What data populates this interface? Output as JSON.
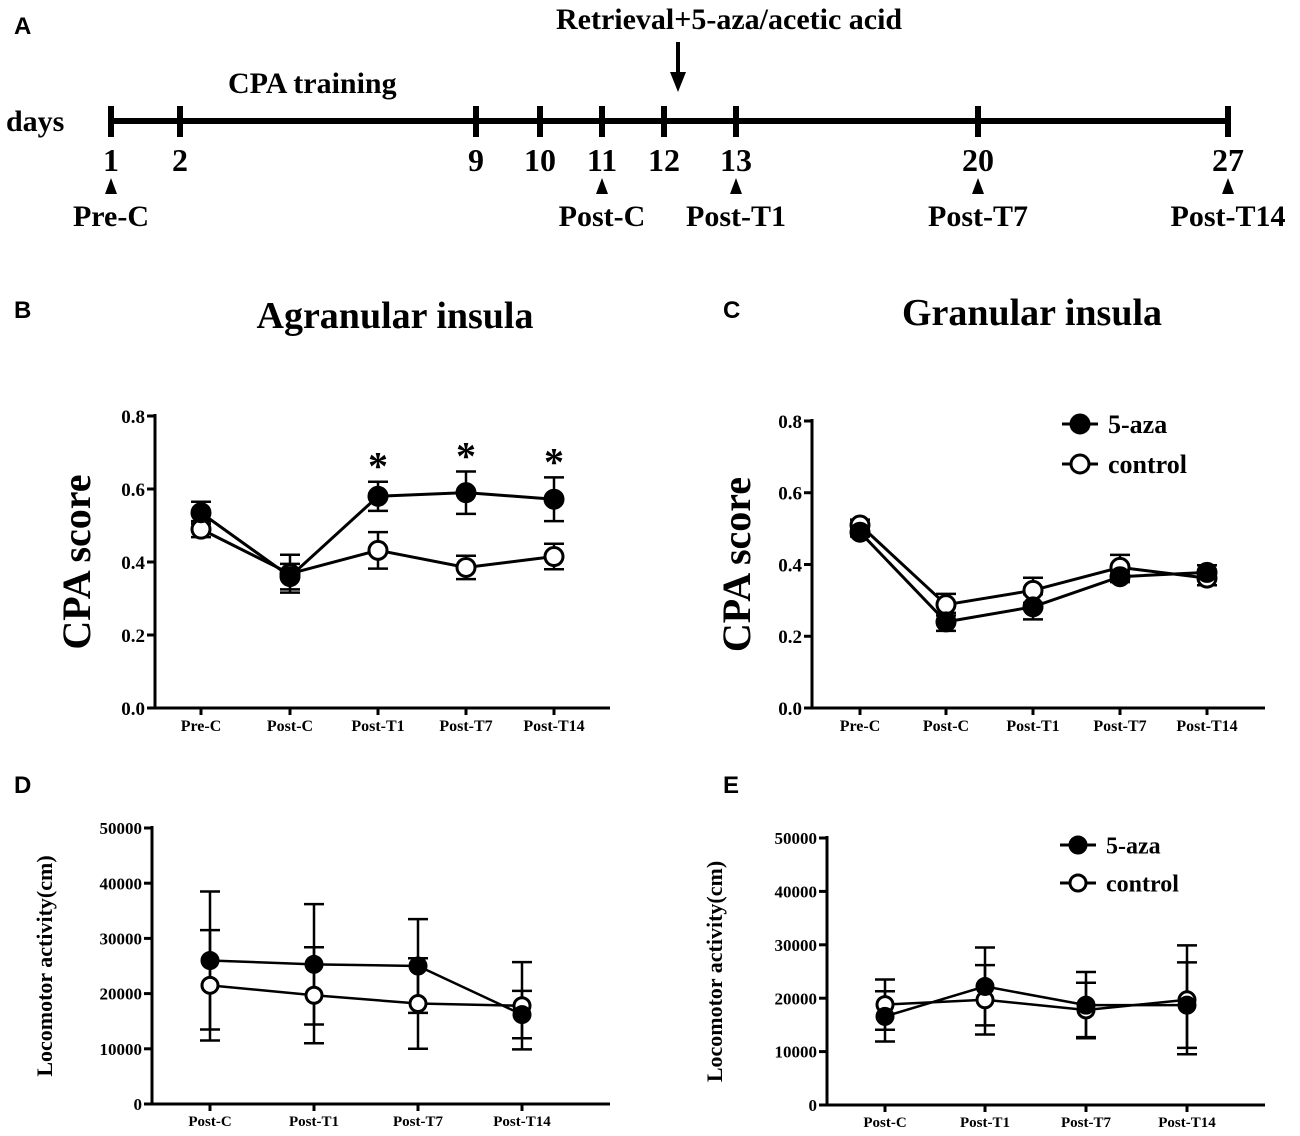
{
  "panel_labels": [
    "A",
    "B",
    "C",
    "D",
    "E"
  ],
  "timeline": {
    "axis_label": "days",
    "training_label": "CPA training",
    "retrieval_label": "Retrieval+5-aza/acetic acid",
    "ticks": [
      1,
      2,
      9,
      10,
      11,
      12,
      13,
      20,
      27
    ],
    "tests": [
      {
        "day": 1,
        "label": "Pre-C"
      },
      {
        "day": 11,
        "label": "Post-C"
      },
      {
        "day": 13,
        "label": "Post-T1"
      },
      {
        "day": 20,
        "label": "Post-T7"
      },
      {
        "day": 27,
        "label": "Post-T14"
      }
    ]
  },
  "legend": {
    "series_a": "5-aza",
    "series_b": "control"
  },
  "chart_data": [
    {
      "id": "B",
      "type": "line",
      "title": "Agranular insula",
      "xlabel": "",
      "ylabel": "CPA score",
      "categories": [
        "Pre-C",
        "Post-C",
        "Post-T1",
        "Post-T7",
        "Post-T14"
      ],
      "ylim": [
        0,
        0.8
      ],
      "yticks": [
        "0.0",
        "0.2",
        "0.4",
        "0.6",
        "0.8"
      ],
      "series": [
        {
          "name": "5-aza",
          "marker": "filled",
          "values": [
            0.535,
            0.36,
            0.58,
            0.59,
            0.572
          ],
          "sem": [
            0.03,
            0.035,
            0.04,
            0.058,
            0.06
          ]
        },
        {
          "name": "control",
          "marker": "open",
          "values": [
            0.49,
            0.368,
            0.432,
            0.385,
            0.415
          ],
          "sem": [
            0.022,
            0.052,
            0.05,
            0.032,
            0.035
          ]
        }
      ],
      "annotations": [
        {
          "category": "Post-T1",
          "text": "*"
        },
        {
          "category": "Post-T7",
          "text": "*"
        },
        {
          "category": "Post-T14",
          "text": "*"
        }
      ],
      "legend": false
    },
    {
      "id": "C",
      "type": "line",
      "title": "Granular insula",
      "xlabel": "",
      "ylabel": "CPA score",
      "categories": [
        "Pre-C",
        "Post-C",
        "Post-T1",
        "Post-T7",
        "Post-T14"
      ],
      "ylim": [
        0,
        0.8
      ],
      "yticks": [
        "0.0",
        "0.2",
        "0.4",
        "0.6",
        "0.8"
      ],
      "series": [
        {
          "name": "5-aza",
          "marker": "filled",
          "values": [
            0.49,
            0.24,
            0.282,
            0.366,
            0.378
          ],
          "sem": [
            0.012,
            0.025,
            0.035,
            0.015,
            0.02
          ]
        },
        {
          "name": "control",
          "marker": "open",
          "values": [
            0.51,
            0.288,
            0.328,
            0.392,
            0.362
          ],
          "sem": [
            0.015,
            0.03,
            0.035,
            0.035,
            0.02
          ]
        }
      ],
      "annotations": [],
      "legend": true
    },
    {
      "id": "D",
      "type": "line",
      "title": "",
      "xlabel": "",
      "ylabel": "Locomotor activity(cm)",
      "categories": [
        "Post-C",
        "Post-T1",
        "Post-T7",
        "Post-T14"
      ],
      "ylim": [
        0,
        50000
      ],
      "yticks": [
        "0",
        "10000",
        "20000",
        "30000",
        "40000",
        "50000"
      ],
      "series": [
        {
          "name": "5-aza",
          "marker": "filled",
          "values": [
            26000,
            25300,
            25000,
            16200
          ],
          "sem": [
            12500,
            10900,
            8500,
            4300
          ]
        },
        {
          "name": "control",
          "marker": "open",
          "values": [
            21500,
            19700,
            18200,
            17800
          ],
          "sem": [
            10000,
            8700,
            8200,
            7900
          ]
        }
      ],
      "annotations": [],
      "legend": false
    },
    {
      "id": "E",
      "type": "line",
      "title": "",
      "xlabel": "",
      "ylabel": "Locomotor activity(cm)",
      "categories": [
        "Post-C",
        "Post-T1",
        "Post-T7",
        "Post-T14"
      ],
      "ylim": [
        0,
        50000
      ],
      "yticks": [
        "0",
        "10000",
        "20000",
        "30000",
        "40000",
        "50000"
      ],
      "series": [
        {
          "name": "5-aza",
          "marker": "filled",
          "values": [
            16600,
            22200,
            18700,
            18700
          ],
          "sem": [
            4700,
            7300,
            6200,
            8000
          ]
        },
        {
          "name": "control",
          "marker": "open",
          "values": [
            18800,
            19700,
            17800,
            19700
          ],
          "sem": [
            4700,
            6500,
            5100,
            10200
          ]
        }
      ],
      "annotations": [],
      "legend": true
    }
  ]
}
